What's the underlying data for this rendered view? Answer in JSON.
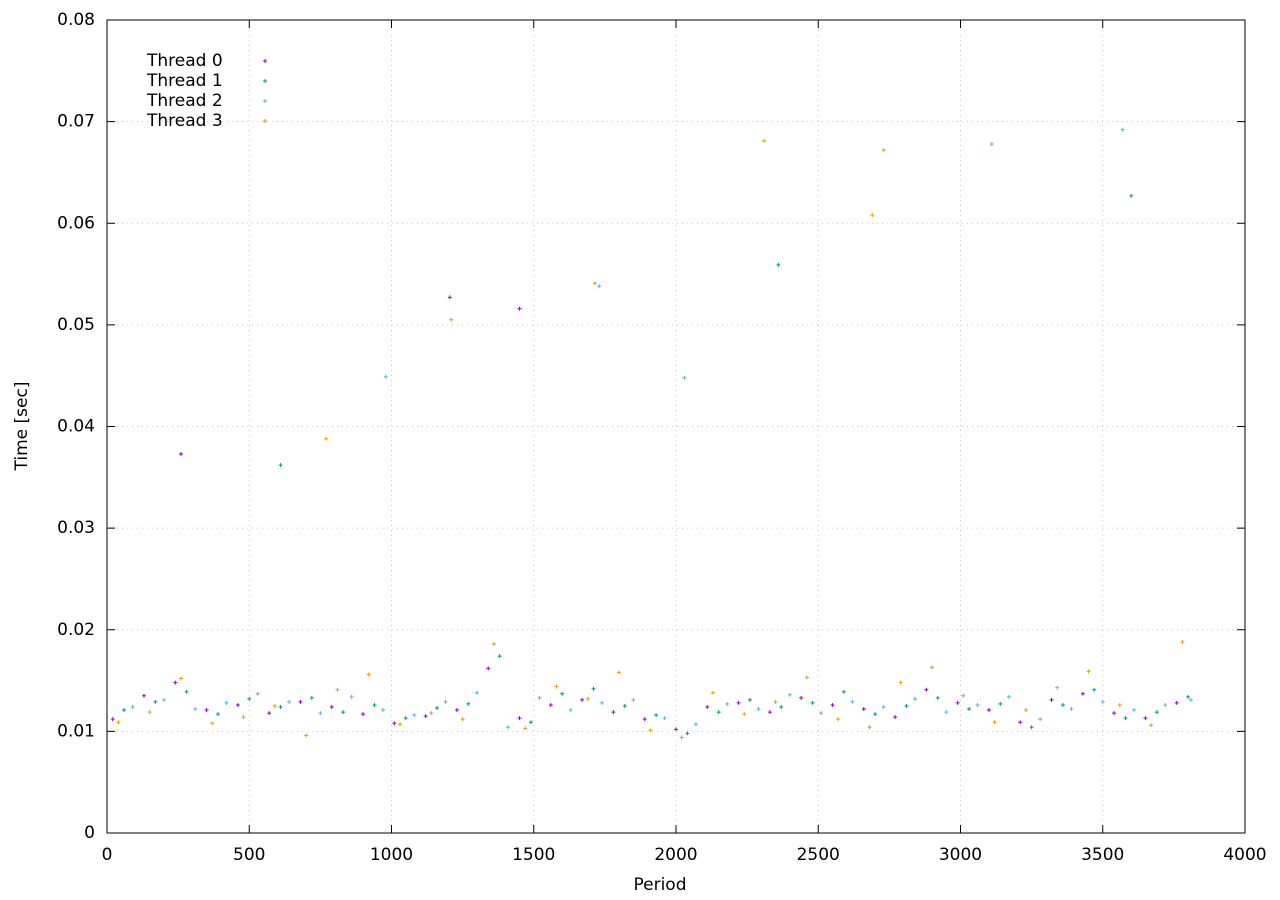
{
  "chart_data": {
    "type": "scatter",
    "x_label": "Period",
    "y_label": "Time [sec]",
    "xlim": [
      0,
      4000
    ],
    "xticks": [
      0,
      500,
      1000,
      1500,
      2000,
      2500,
      3000,
      3500,
      4000
    ],
    "ylim": [
      0,
      0.08
    ],
    "yticks": [
      0,
      0.01,
      0.02,
      0.03,
      0.04,
      0.05,
      0.06,
      0.07,
      0.08
    ],
    "grid": true,
    "legend": "top-left",
    "series": [
      {
        "name": "Thread 0",
        "color": "#9400d3",
        "x": [
          20,
          130,
          240,
          350,
          460,
          570,
          680,
          790,
          900,
          1010,
          1120,
          1230,
          1340,
          1450,
          1560,
          1670,
          1780,
          1890,
          2000,
          2110,
          2220,
          2330,
          2440,
          2550,
          2660,
          2770,
          2880,
          2990,
          3100,
          3210,
          3320,
          3430,
          3540,
          3650,
          3760,
          1205,
          260,
          1450
        ],
        "values": [
          0.0112,
          0.0135,
          0.0148,
          0.0121,
          0.0126,
          0.0118,
          0.0129,
          0.0124,
          0.0117,
          0.0108,
          0.0115,
          0.0121,
          0.0162,
          0.0113,
          0.0126,
          0.0131,
          0.0119,
          0.0112,
          0.0102,
          0.0124,
          0.0128,
          0.0119,
          0.0133,
          0.0126,
          0.0122,
          0.0114,
          0.0141,
          0.0128,
          0.0121,
          0.0109,
          0.0131,
          0.0137,
          0.0118,
          0.0113,
          0.0128,
          0.0527,
          0.0373,
          0.0516
        ]
      },
      {
        "name": "Thread 1",
        "color": "#009e73",
        "x": [
          60,
          170,
          280,
          390,
          500,
          610,
          720,
          830,
          940,
          1050,
          1160,
          1270,
          1380,
          1490,
          1600,
          1710,
          1820,
          1930,
          2040,
          2150,
          2260,
          2370,
          2480,
          2590,
          2700,
          2810,
          2920,
          3030,
          3140,
          3250,
          3360,
          3470,
          3580,
          3690,
          3800,
          2360,
          3600,
          610
        ],
        "values": [
          0.0121,
          0.0129,
          0.0139,
          0.0117,
          0.0132,
          0.0124,
          0.0133,
          0.0119,
          0.0126,
          0.0113,
          0.0123,
          0.0127,
          0.0174,
          0.0109,
          0.0137,
          0.0142,
          0.0125,
          0.0116,
          0.0098,
          0.0119,
          0.0131,
          0.0124,
          0.0128,
          0.0139,
          0.0117,
          0.0125,
          0.0133,
          0.0122,
          0.0127,
          0.0104,
          0.0126,
          0.0141,
          0.0113,
          0.0119,
          0.0134,
          0.0559,
          0.0627,
          0.0362
        ]
      },
      {
        "name": "Thread 2",
        "color": "#56b4e9",
        "x": [
          90,
          200,
          310,
          420,
          530,
          640,
          750,
          860,
          970,
          1080,
          1190,
          1300,
          1410,
          1520,
          1630,
          1740,
          1850,
          1960,
          2070,
          2180,
          2290,
          2400,
          2510,
          2620,
          2730,
          2840,
          2950,
          3060,
          3170,
          3280,
          3390,
          3500,
          3610,
          3720,
          3810,
          1730,
          3110,
          2030,
          980,
          3570
        ],
        "values": [
          0.0124,
          0.0131,
          0.0122,
          0.0128,
          0.0137,
          0.0129,
          0.0118,
          0.0134,
          0.0121,
          0.0116,
          0.0129,
          0.0138,
          0.0104,
          0.0133,
          0.0121,
          0.0128,
          0.0131,
          0.0113,
          0.0107,
          0.0127,
          0.0122,
          0.0136,
          0.0118,
          0.0129,
          0.0124,
          0.0132,
          0.0119,
          0.0126,
          0.0134,
          0.0112,
          0.0122,
          0.0129,
          0.0121,
          0.0126,
          0.0131,
          0.0538,
          0.0678,
          0.0448,
          0.0449,
          0.0692
        ]
      },
      {
        "name": "Thread 3",
        "color": "#e69f00",
        "x": [
          40,
          150,
          260,
          370,
          480,
          590,
          700,
          810,
          920,
          1030,
          1140,
          1250,
          1360,
          1470,
          1580,
          1690,
          1800,
          1910,
          2020,
          2130,
          2240,
          2350,
          2460,
          2570,
          2680,
          2790,
          2900,
          3010,
          3120,
          3230,
          3340,
          3450,
          3560,
          3670,
          3780,
          2310,
          2690,
          1715,
          2730,
          1210,
          770
        ],
        "values": [
          0.0109,
          0.0119,
          0.0152,
          0.0108,
          0.0114,
          0.0125,
          0.0096,
          0.0141,
          0.0156,
          0.0107,
          0.0118,
          0.0112,
          0.0186,
          0.0103,
          0.0144,
          0.0132,
          0.0158,
          0.0101,
          0.0094,
          0.0138,
          0.0117,
          0.0129,
          0.0153,
          0.0112,
          0.0104,
          0.0148,
          0.0163,
          0.0135,
          0.0109,
          0.0121,
          0.0143,
          0.0159,
          0.0126,
          0.0106,
          0.0188,
          0.0681,
          0.0608,
          0.0541,
          0.0672,
          0.0505,
          0.0388
        ]
      }
    ]
  }
}
